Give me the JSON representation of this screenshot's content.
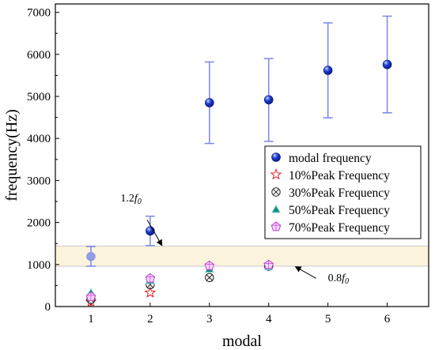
{
  "chart_data": {
    "type": "scatter",
    "xlabel": "modal",
    "ylabel": "frequency(Hz)",
    "xlim": [
      0.4,
      6.7
    ],
    "ylim": [
      0,
      7200
    ],
    "x_ticks": [
      1,
      2,
      3,
      4,
      5,
      6
    ],
    "y_ticks": [
      0,
      1000,
      2000,
      3000,
      4000,
      5000,
      6000,
      7000
    ],
    "band": {
      "lower": 960,
      "upper": 1440,
      "color": "#fbf3dc"
    },
    "legend_position": "right",
    "series": [
      {
        "name": "modal  frequency",
        "marker": "filled-circle",
        "color": "#1f3fd6",
        "errorbar_color": "#7b86e8",
        "points": [
          {
            "x": 1,
            "y": 1190,
            "low": 960,
            "high": 1430,
            "faded": true
          },
          {
            "x": 2,
            "y": 1800,
            "low": 1450,
            "high": 2150
          },
          {
            "x": 3,
            "y": 4850,
            "low": 3880,
            "high": 5820
          },
          {
            "x": 4,
            "y": 4920,
            "low": 3930,
            "high": 5900
          },
          {
            "x": 5,
            "y": 5620,
            "low": 4490,
            "high": 6750
          },
          {
            "x": 6,
            "y": 5760,
            "low": 4610,
            "high": 6910
          }
        ]
      },
      {
        "name": "10%Peak Frequency",
        "marker": "star",
        "color": "#e02020",
        "points": [
          {
            "x": 1,
            "y": 110
          },
          {
            "x": 2,
            "y": 330
          }
        ]
      },
      {
        "name": "30%Peak Frequency",
        "marker": "circled-x",
        "color": "#222222",
        "points": [
          {
            "x": 1,
            "y": 170
          },
          {
            "x": 2,
            "y": 520
          },
          {
            "x": 3,
            "y": 690
          },
          {
            "x": 4,
            "y": 960
          }
        ]
      },
      {
        "name": "50%Peak Frequency",
        "marker": "triangle",
        "color": "#1c8a80",
        "points": [
          {
            "x": 1,
            "y": 330
          },
          {
            "x": 2,
            "y": 620
          },
          {
            "x": 3,
            "y": 890
          },
          {
            "x": 4,
            "y": 950
          }
        ]
      },
      {
        "name": "70%Peak Frequency",
        "marker": "pentagon",
        "color": "#c040d0",
        "points": [
          {
            "x": 1,
            "y": 230
          },
          {
            "x": 2,
            "y": 670
          },
          {
            "x": 3,
            "y": 970
          },
          {
            "x": 4,
            "y": 990
          }
        ]
      }
    ],
    "annotations": [
      {
        "base": "1.2",
        "var": "f",
        "sub": "0",
        "text_x": 1.5,
        "text_y": 2500,
        "arrow_from_x": 1.95,
        "arrow_from_y": 2060,
        "arrow_to_x": 2.2,
        "arrow_to_y": 1450
      },
      {
        "base": "0.8",
        "var": "f",
        "sub": "0",
        "text_x": 5.0,
        "text_y": 600,
        "arrow_from_x": 4.8,
        "arrow_from_y": 670,
        "arrow_to_x": 4.45,
        "arrow_to_y": 950
      }
    ]
  }
}
